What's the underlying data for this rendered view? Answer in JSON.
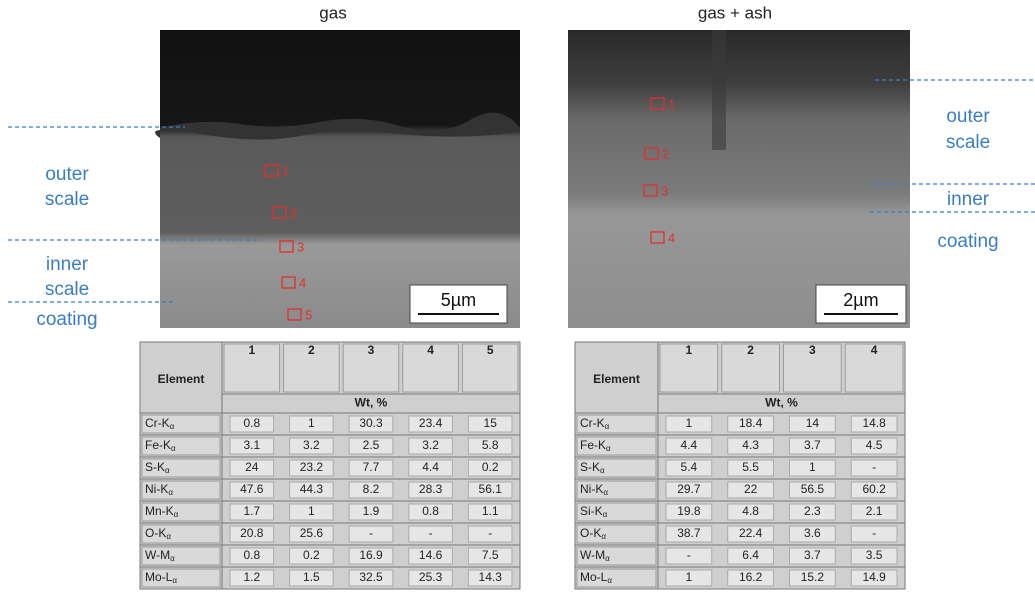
{
  "panels": [
    {
      "title": "gas",
      "points": [
        "1",
        "2",
        "3",
        "4",
        "5"
      ],
      "scale_bar": "5µm",
      "labels": [
        "outer",
        "scale",
        "inner",
        "scale",
        "coating"
      ]
    },
    {
      "title": "gas + ash",
      "points": [
        "1",
        "2",
        "3",
        "4"
      ],
      "scale_bar": "2µm",
      "labels": [
        "outer",
        "scale",
        "inner",
        "coating"
      ]
    }
  ],
  "tables": [
    {
      "header": "Element",
      "columns": [
        "1",
        "2",
        "3",
        "4",
        "5"
      ],
      "unit": "Wt, %",
      "rows": [
        {
          "element": "Cr-K",
          "sub": "α",
          "values": [
            0.8,
            1,
            30.3,
            23.4,
            15
          ]
        },
        {
          "element": "Fe-K",
          "sub": "α",
          "values": [
            3.1,
            3.2,
            2.5,
            3.2,
            5.8
          ]
        },
        {
          "element": "S-K",
          "sub": "α",
          "values": [
            24,
            23.2,
            7.7,
            4.4,
            0.2
          ]
        },
        {
          "element": "Ni-K",
          "sub": "α",
          "values": [
            47.6,
            44.3,
            8.2,
            28.3,
            56.1
          ]
        },
        {
          "element": "Mn-K",
          "sub": "α",
          "values": [
            1.7,
            1,
            1.9,
            0.8,
            1.1
          ]
        },
        {
          "element": "O-K",
          "sub": "α",
          "values": [
            20.8,
            25.6,
            "-",
            "-",
            "-"
          ]
        },
        {
          "element": "W-M",
          "sub": "α",
          "values": [
            0.8,
            0.2,
            16.9,
            14.6,
            7.5
          ]
        },
        {
          "element": "Mo-L",
          "sub": "α",
          "values": [
            1.2,
            1.5,
            32.5,
            25.3,
            14.3
          ]
        }
      ]
    },
    {
      "header": "Element",
      "columns": [
        "1",
        "2",
        "3",
        "4"
      ],
      "unit": "Wt, %",
      "rows": [
        {
          "element": "Cr-K",
          "sub": "α",
          "values": [
            1,
            18.4,
            14,
            14.8
          ]
        },
        {
          "element": "Fe-K",
          "sub": "α",
          "values": [
            4.4,
            4.3,
            3.7,
            4.5
          ]
        },
        {
          "element": "S-K",
          "sub": "α",
          "values": [
            5.4,
            5.5,
            1,
            "-"
          ]
        },
        {
          "element": "Ni-K",
          "sub": "α",
          "values": [
            29.7,
            22,
            56.5,
            60.2
          ]
        },
        {
          "element": "Si-K",
          "sub": "α",
          "values": [
            19.8,
            4.8,
            2.3,
            2.1
          ]
        },
        {
          "element": "O-K",
          "sub": "α",
          "values": [
            38.7,
            22.4,
            3.6,
            "-"
          ]
        },
        {
          "element": "W-M",
          "sub": "α",
          "values": [
            "-",
            6.4,
            3.7,
            3.5
          ]
        },
        {
          "element": "Mo-L",
          "sub": "α",
          "values": [
            1,
            16.2,
            15.2,
            14.9
          ]
        }
      ]
    }
  ]
}
